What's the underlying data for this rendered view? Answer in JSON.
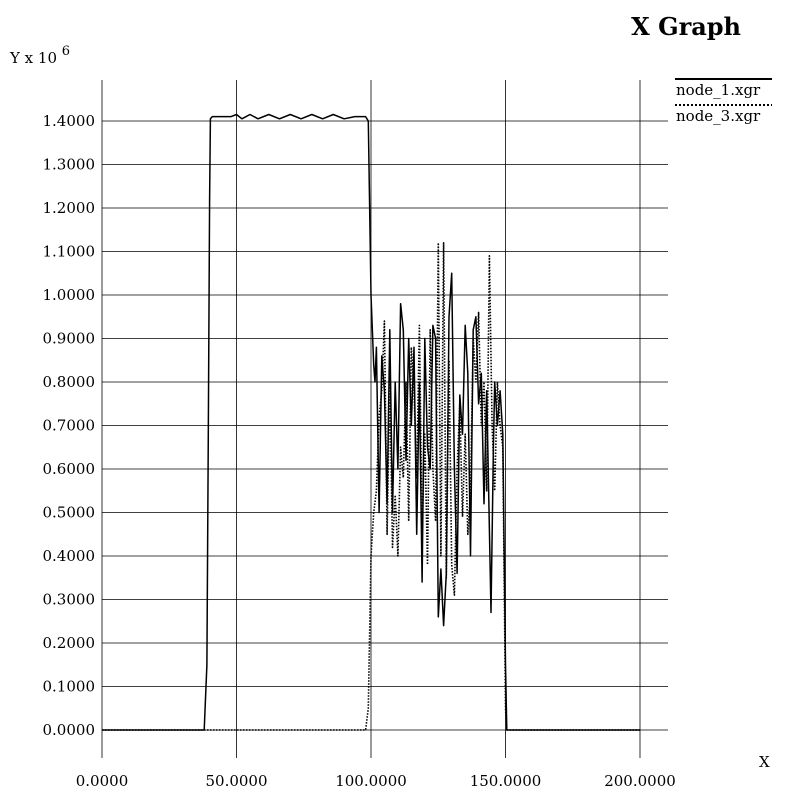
{
  "chart_data": {
    "type": "line",
    "title": "X Graph",
    "xlabel": "X",
    "ylabel_base": "Y x 10",
    "ylabel_exp": "6",
    "xlim": [
      0,
      200
    ],
    "ylim": [
      0,
      1.4
    ],
    "x_ticks": [
      0,
      50,
      100,
      150,
      200
    ],
    "x_tick_labels": [
      "0.0000",
      "50.0000",
      "100.0000",
      "150.0000",
      "200.0000"
    ],
    "y_ticks": [
      0,
      0.1,
      0.2,
      0.3,
      0.4,
      0.5,
      0.6,
      0.7,
      0.8,
      0.9,
      1.0,
      1.1,
      1.2,
      1.3,
      1.4
    ],
    "y_tick_labels": [
      "0.0000",
      "0.1000",
      "0.2000",
      "0.3000",
      "0.4000",
      "0.5000",
      "0.6000",
      "0.7000",
      "0.8000",
      "0.9000",
      "1.0000",
      "1.1000",
      "1.2000",
      "1.3000",
      "1.4000"
    ],
    "grid": true,
    "legend_position": "top-right",
    "series": [
      {
        "name": "node_1.xgr",
        "style": "solid",
        "color": "#000000",
        "points": [
          [
            0,
            0
          ],
          [
            38,
            0
          ],
          [
            39,
            0.15
          ],
          [
            39.5,
            0.68
          ],
          [
            40,
            1.22
          ],
          [
            40.3,
            1.405
          ],
          [
            41,
            1.41
          ],
          [
            48,
            1.41
          ],
          [
            50,
            1.415
          ],
          [
            52,
            1.405
          ],
          [
            55,
            1.415
          ],
          [
            58,
            1.405
          ],
          [
            62,
            1.415
          ],
          [
            66,
            1.405
          ],
          [
            70,
            1.415
          ],
          [
            74,
            1.405
          ],
          [
            78,
            1.415
          ],
          [
            82,
            1.405
          ],
          [
            86,
            1.415
          ],
          [
            90,
            1.405
          ],
          [
            94,
            1.41
          ],
          [
            98,
            1.41
          ],
          [
            99,
            1.4
          ],
          [
            100,
            1.0
          ],
          [
            101,
            0.84
          ],
          [
            101.5,
            0.8
          ],
          [
            102,
            0.88
          ],
          [
            103,
            0.5
          ],
          [
            104,
            0.86
          ],
          [
            105,
            0.78
          ],
          [
            106,
            0.52
          ],
          [
            107,
            0.92
          ],
          [
            108,
            0.5
          ],
          [
            109,
            0.8
          ],
          [
            110,
            0.6
          ],
          [
            111,
            0.98
          ],
          [
            112,
            0.92
          ],
          [
            113,
            0.62
          ],
          [
            114,
            0.9
          ],
          [
            115,
            0.7
          ],
          [
            116,
            0.88
          ],
          [
            117,
            0.45
          ],
          [
            118,
            0.8
          ],
          [
            119,
            0.34
          ],
          [
            120,
            0.9
          ],
          [
            121,
            0.65
          ],
          [
            122,
            0.6
          ],
          [
            123,
            0.93
          ],
          [
            124,
            0.9
          ],
          [
            125,
            0.26
          ],
          [
            126,
            0.37
          ],
          [
            127,
            0.24
          ],
          [
            128,
            0.36
          ],
          [
            129,
            0.95
          ],
          [
            130,
            1.05
          ],
          [
            131,
            0.6
          ],
          [
            132,
            0.36
          ],
          [
            133,
            0.77
          ],
          [
            134,
            0.68
          ],
          [
            135,
            0.93
          ],
          [
            136,
            0.82
          ],
          [
            137,
            0.4
          ],
          [
            138,
            0.92
          ],
          [
            139,
            0.95
          ],
          [
            140,
            0.75
          ],
          [
            141,
            0.82
          ],
          [
            142,
            0.52
          ],
          [
            143,
            0.78
          ],
          [
            144,
            0.46
          ],
          [
            144.6,
            0.27
          ],
          [
            145.5,
            0.65
          ],
          [
            146,
            0.8
          ],
          [
            147,
            0.7
          ],
          [
            148,
            0.78
          ],
          [
            149,
            0.68
          ],
          [
            150,
            0.15
          ],
          [
            150.5,
            0
          ],
          [
            200,
            0
          ]
        ]
      },
      {
        "name": "node_3.xgr",
        "style": "dotted",
        "color": "#000000",
        "points": [
          [
            0,
            0
          ],
          [
            98,
            0
          ],
          [
            99,
            0.05
          ],
          [
            100,
            0.4
          ],
          [
            101,
            0.5
          ],
          [
            102,
            0.55
          ],
          [
            103,
            0.72
          ],
          [
            104,
            0.78
          ],
          [
            105,
            0.94
          ],
          [
            106,
            0.45
          ],
          [
            107,
            0.8
          ],
          [
            108,
            0.42
          ],
          [
            109,
            0.54
          ],
          [
            110,
            0.4
          ],
          [
            111,
            0.65
          ],
          [
            112,
            0.58
          ],
          [
            113,
            0.8
          ],
          [
            114,
            0.48
          ],
          [
            115,
            0.88
          ],
          [
            116,
            0.78
          ],
          [
            117,
            0.58
          ],
          [
            118,
            0.93
          ],
          [
            119,
            0.45
          ],
          [
            120,
            0.68
          ],
          [
            121,
            0.38
          ],
          [
            122,
            0.92
          ],
          [
            123,
            0.6
          ],
          [
            124,
            0.48
          ],
          [
            125,
            1.12
          ],
          [
            126,
            0.4
          ],
          [
            127,
            1.12
          ],
          [
            128,
            0.35
          ],
          [
            129,
            0.85
          ],
          [
            130,
            0.38
          ],
          [
            131,
            0.31
          ],
          [
            132,
            0.6
          ],
          [
            133,
            0.75
          ],
          [
            134,
            0.49
          ],
          [
            135,
            0.68
          ],
          [
            136,
            0.45
          ],
          [
            137,
            0.55
          ],
          [
            138,
            0.9
          ],
          [
            139,
            0.8
          ],
          [
            140,
            0.96
          ],
          [
            141,
            0.7
          ],
          [
            142,
            0.8
          ],
          [
            143,
            0.55
          ],
          [
            144,
            1.09
          ],
          [
            145,
            0.7
          ],
          [
            146,
            0.55
          ],
          [
            147,
            0.8
          ],
          [
            148,
            0.7
          ],
          [
            149,
            0.65
          ],
          [
            150,
            0.05
          ],
          [
            150.5,
            0
          ],
          [
            200,
            0
          ]
        ]
      }
    ]
  }
}
